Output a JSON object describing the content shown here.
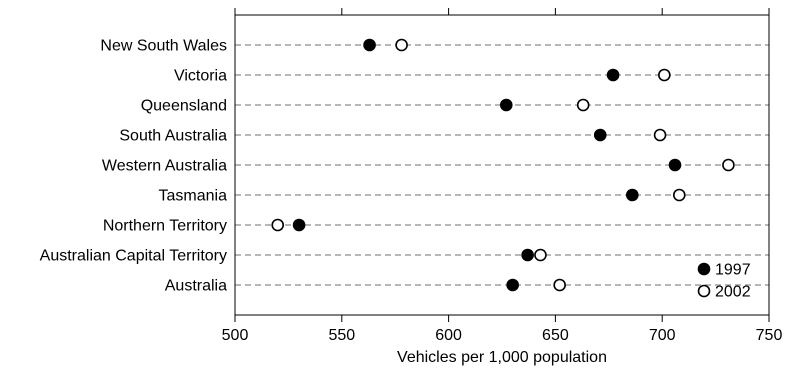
{
  "chart_data": {
    "type": "scatter",
    "title": "",
    "xlabel": "Vehicles per 1,000 population",
    "ylabel": "",
    "xlim": [
      500,
      750
    ],
    "xticks": [
      500,
      550,
      600,
      650,
      700,
      750
    ],
    "xtick_labels": [
      "500",
      "550",
      "600",
      "650",
      "700",
      "750"
    ],
    "grid": "horizontal dashed lines per category",
    "legend_position": "bottom-right",
    "categories": [
      "New South Wales",
      "Victoria",
      "Queensland",
      "South Australia",
      "Western Australia",
      "Tasmania",
      "Northern Territory",
      "Australian Capital Territory",
      "Australia"
    ],
    "series": [
      {
        "name": "1997",
        "marker": "filled-circle",
        "values": [
          563,
          677,
          627,
          671,
          706,
          686,
          530,
          637,
          630
        ]
      },
      {
        "name": "2002",
        "marker": "open-circle",
        "values": [
          578,
          701,
          663,
          699,
          731,
          708,
          520,
          643,
          652
        ]
      }
    ]
  }
}
